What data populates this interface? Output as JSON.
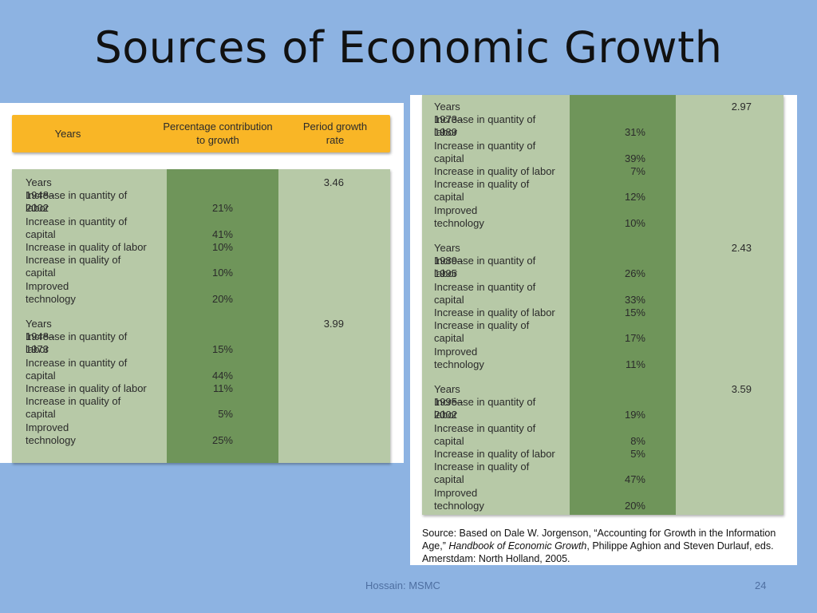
{
  "slide": {
    "title": "Sources of Economic Growth",
    "footer": "Hossain: MSMC",
    "page_number": "24"
  },
  "header": {
    "years": "Years",
    "contribution": "Percentage contribution\nto growth",
    "rate": "Period growth\nrate"
  },
  "left_table": {
    "periods": [
      {
        "label": "Years 1948–2002",
        "rate": "3.46",
        "rows": [
          {
            "label": "Increase in quantity of\nlabor",
            "value": "21%"
          },
          {
            "label": "Increase in quantity of\ncapital",
            "value": "41%"
          },
          {
            "label": "Increase in quality of labor",
            "value": "10%"
          },
          {
            "label": "Increase in quality of\ncapital",
            "value": "10%"
          },
          {
            "label": "Improved\ntechnology",
            "value": "20%"
          }
        ]
      },
      {
        "label": "Years 1948–1973",
        "rate": "3.99",
        "rows": [
          {
            "label": "Increase in quantity of\nlabor",
            "value": "15%"
          },
          {
            "label": "Increase in quantity of\ncapital",
            "value": "44%"
          },
          {
            "label": "Increase in quality of labor",
            "value": "11%"
          },
          {
            "label": "Increase in quality of\ncapital",
            "value": "5%"
          },
          {
            "label": "Improved\ntechnology",
            "value": "25%"
          }
        ]
      }
    ]
  },
  "right_table": {
    "periods": [
      {
        "label": "Years 1973–1989",
        "rate": "2.97",
        "rows": [
          {
            "label": "Increase in quantity of\nlabor",
            "value": "31%"
          },
          {
            "label": "Increase in quantity of\ncapital",
            "value": "39%"
          },
          {
            "label": "Increase in quality of labor",
            "value": "7%"
          },
          {
            "label": "Increase in quality of\ncapital",
            "value": "12%"
          },
          {
            "label": "Improved\ntechnology",
            "value": "10%"
          }
        ]
      },
      {
        "label": "Years 1989–1995",
        "rate": "2.43",
        "rows": [
          {
            "label": "Increase in quantity of\nlabor",
            "value": "26%"
          },
          {
            "label": "Increase in quantity of\ncapital",
            "value": "33%"
          },
          {
            "label": "Increase in quality of labor",
            "value": "15%"
          },
          {
            "label": "Increase in quality of\ncapital",
            "value": "17%"
          },
          {
            "label": "Improved\ntechnology",
            "value": "11%"
          }
        ]
      },
      {
        "label": "Years 1995–2002",
        "rate": "3.59",
        "rows": [
          {
            "label": "Increase in quantity of\nlabor",
            "value": "19%"
          },
          {
            "label": "Increase in quantity of\ncapital",
            "value": "8%"
          },
          {
            "label": "Increase in quality of labor",
            "value": "5%"
          },
          {
            "label": "Increase in quality of\ncapital",
            "value": "47%"
          },
          {
            "label": "Improved\ntechnology",
            "value": "20%"
          }
        ]
      }
    ]
  },
  "source": {
    "prefix": "Source: Based on Dale W. Jorgenson, “Accounting for Growth in the Information Age,” ",
    "book": "Handbook of Economic Growth",
    "suffix": ", Philippe Aghion and Steven Durlauf, eds. Amerstdam: North Holland, 2005."
  },
  "colors": {
    "background": "#8db3e2",
    "header": "#f9b626",
    "table_light": "#b7c9a7",
    "table_dark": "#6f955a"
  }
}
